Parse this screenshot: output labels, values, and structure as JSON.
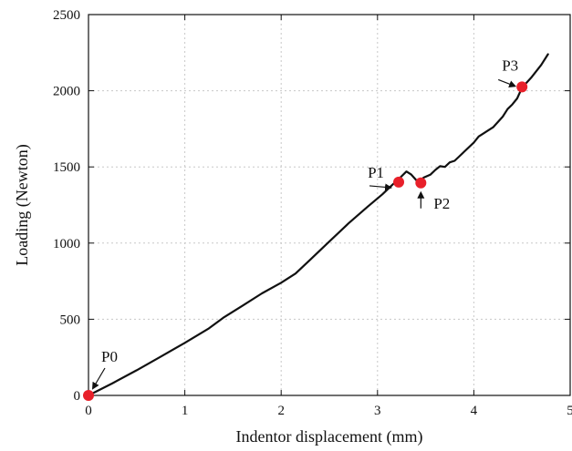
{
  "chart_data": {
    "type": "line",
    "title": "",
    "xlabel": "Indentor displacement (mm)",
    "ylabel": "Loading (Newton)",
    "xlim": [
      0,
      5
    ],
    "ylim": [
      0,
      2500
    ],
    "xticks": [
      0,
      1,
      2,
      3,
      4,
      5
    ],
    "yticks": [
      0,
      500,
      1000,
      1500,
      2000,
      2500
    ],
    "grid": true,
    "legend": "none",
    "series": [
      {
        "color": "#111111",
        "x": [
          0,
          0.25,
          0.5,
          0.75,
          1.0,
          1.25,
          1.4,
          1.6,
          1.8,
          2.0,
          2.15,
          2.3,
          2.5,
          2.7,
          2.9,
          3.05,
          3.15,
          3.22,
          3.3,
          3.35,
          3.42,
          3.48,
          3.55,
          3.6,
          3.65,
          3.7,
          3.75,
          3.8,
          3.85,
          3.9,
          4.0,
          4.05,
          4.1,
          4.15,
          4.2,
          4.3,
          4.35,
          4.4,
          4.45,
          4.5,
          4.6,
          4.7,
          4.77
        ],
        "y": [
          0,
          80,
          165,
          255,
          345,
          440,
          510,
          590,
          670,
          740,
          800,
          890,
          1010,
          1130,
          1240,
          1320,
          1380,
          1420,
          1470,
          1450,
          1400,
          1430,
          1450,
          1480,
          1505,
          1500,
          1530,
          1540,
          1570,
          1600,
          1660,
          1700,
          1720,
          1740,
          1760,
          1830,
          1880,
          1910,
          1950,
          2020,
          2090,
          2170,
          2240
        ]
      }
    ],
    "annotations": [
      {
        "label": "P0",
        "x": 0,
        "y": 0
      },
      {
        "label": "P1",
        "x": 3.22,
        "y": 1400
      },
      {
        "label": "P2",
        "x": 3.45,
        "y": 1395
      },
      {
        "label": "P3",
        "x": 4.5,
        "y": 2025
      }
    ],
    "marker_color": "#e8202a"
  }
}
